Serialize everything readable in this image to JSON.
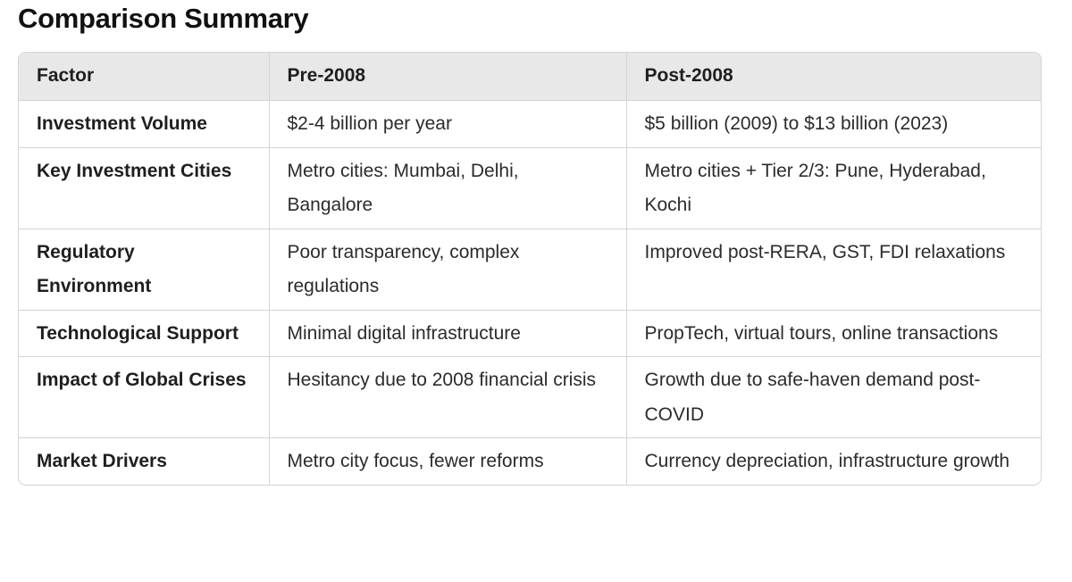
{
  "title": "Comparison Summary",
  "table": {
    "headers": [
      "Factor",
      "Pre-2008",
      "Post-2008"
    ],
    "rows": [
      [
        "Investment Volume",
        "$2-4 billion per year",
        "$5 billion (2009) to $13 billion (2023)"
      ],
      [
        "Key Investment Cities",
        "Metro cities: Mumbai, Delhi, Bangalore",
        "Metro cities + Tier 2/3: Pune, Hyderabad, Kochi"
      ],
      [
        "Regulatory Environment",
        "Poor transparency, complex regulations",
        "Improved post-RERA, GST, FDI relaxations"
      ],
      [
        "Technological Support",
        "Minimal digital infrastructure",
        "PropTech, virtual tours, online transactions"
      ],
      [
        "Impact of Global Crises",
        "Hesitancy due to 2008 financial crisis",
        "Growth due to safe-haven demand post-COVID"
      ],
      [
        "Market Drivers",
        "Metro city focus, fewer reforms",
        "Currency depreciation, infrastructure growth"
      ]
    ]
  }
}
